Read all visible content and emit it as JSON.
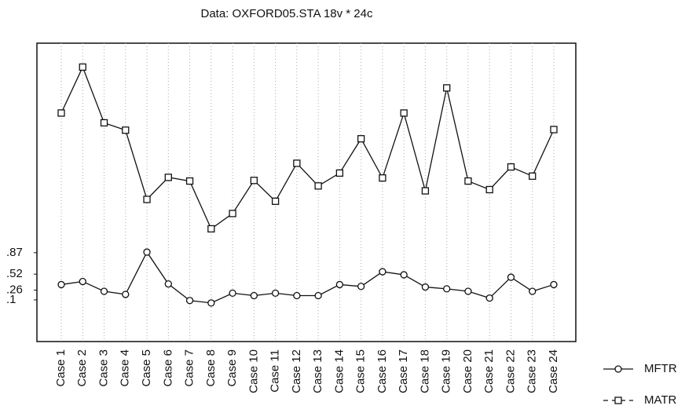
{
  "chart_data": {
    "type": "line",
    "title": "Data: OXFORD05.STA 18v * 24c",
    "categories": [
      "Case 1",
      "Case 2",
      "Case 3",
      "Case 4",
      "Case 5",
      "Case 6",
      "Case 7",
      "Case 8",
      "Case 9",
      "Case 10",
      "Case 11",
      "Case 12",
      "Case 13",
      "Case 14",
      "Case 15",
      "Case 16",
      "Case 17",
      "Case 18",
      "Case 19",
      "Case 20",
      "Case 21",
      "Case 22",
      "Case 23",
      "Case 24"
    ],
    "series": [
      {
        "name": "MFTR",
        "color": "#111111",
        "marker": "circle",
        "dashed": false,
        "values": [
          0.35,
          0.4,
          0.24,
          0.19,
          0.88,
          0.36,
          0.09,
          0.05,
          0.21,
          0.17,
          0.21,
          0.17,
          0.17,
          0.35,
          0.32,
          0.56,
          0.51,
          0.31,
          0.28,
          0.24,
          0.13,
          0.47,
          0.24,
          0.35
        ]
      },
      {
        "name": "MATR",
        "color": "#111111",
        "marker": "square",
        "dashed": true,
        "values": [
          3.15,
          3.9,
          2.99,
          2.87,
          1.74,
          2.1,
          2.04,
          1.26,
          1.51,
          2.05,
          1.71,
          2.33,
          1.96,
          2.17,
          2.73,
          2.09,
          3.15,
          1.88,
          3.56,
          2.04,
          1.9,
          2.27,
          2.12,
          2.88
        ]
      }
    ],
    "ylim": [
      -0.58,
      4.29
    ],
    "yticks": [
      {
        "value": 0.87,
        "label": ".87"
      },
      {
        "value": 0.52,
        "label": ".52"
      },
      {
        "value": 0.26,
        "label": ".26"
      },
      {
        "value": 0.1,
        "label": ".1"
      }
    ],
    "grid": true,
    "legend": "lower right"
  }
}
